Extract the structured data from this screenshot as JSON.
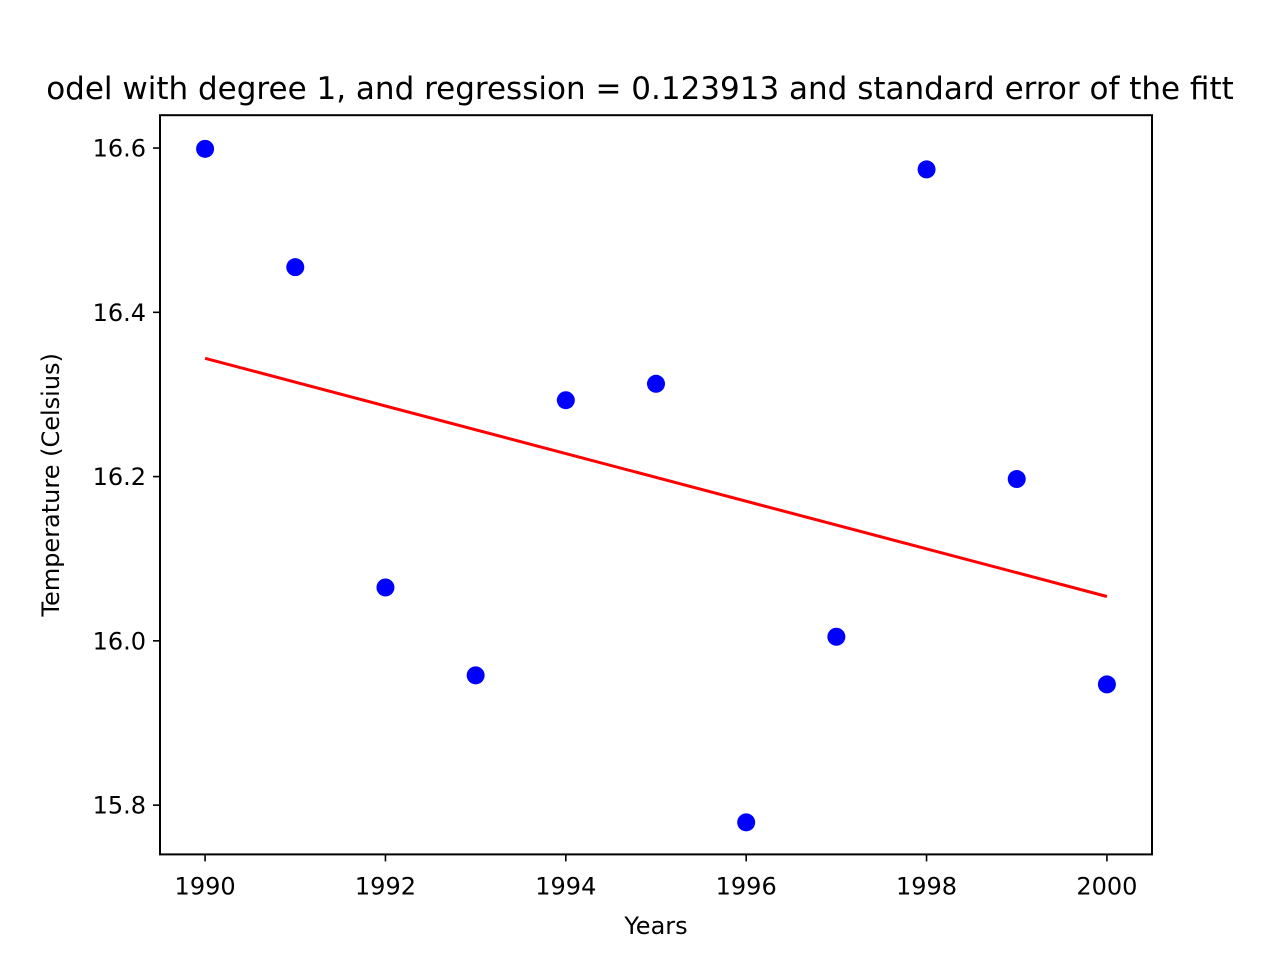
{
  "chart_data": {
    "type": "scatter",
    "title": "odel with degree 1, and regression = 0.123913 and standard error of the fitt",
    "xlabel": "Years",
    "ylabel": "Temperature (Celsius)",
    "xlim": [
      1989.5,
      2000.5
    ],
    "ylim": [
      15.74,
      16.64
    ],
    "xticks": [
      1990,
      1992,
      1994,
      1996,
      1998,
      2000
    ],
    "xtick_labels": [
      "1990",
      "1992",
      "1994",
      "1996",
      "1998",
      "2000"
    ],
    "yticks": [
      15.8,
      16.0,
      16.2,
      16.4,
      16.6
    ],
    "ytick_labels": [
      "15.8",
      "16.0",
      "16.2",
      "16.4",
      "16.6"
    ],
    "grid": false,
    "series": [
      {
        "kind": "scatter",
        "color": "#0000ff",
        "x": [
          1990,
          1991,
          1992,
          1993,
          1994,
          1995,
          1996,
          1997,
          1998,
          1999,
          2000
        ],
        "y": [
          16.599,
          16.455,
          16.065,
          15.958,
          16.293,
          16.313,
          15.779,
          16.005,
          16.574,
          16.197,
          15.947
        ]
      },
      {
        "kind": "line",
        "color": "#ff0000",
        "x": [
          1990,
          2000
        ],
        "y": [
          16.344,
          16.054
        ]
      }
    ]
  }
}
